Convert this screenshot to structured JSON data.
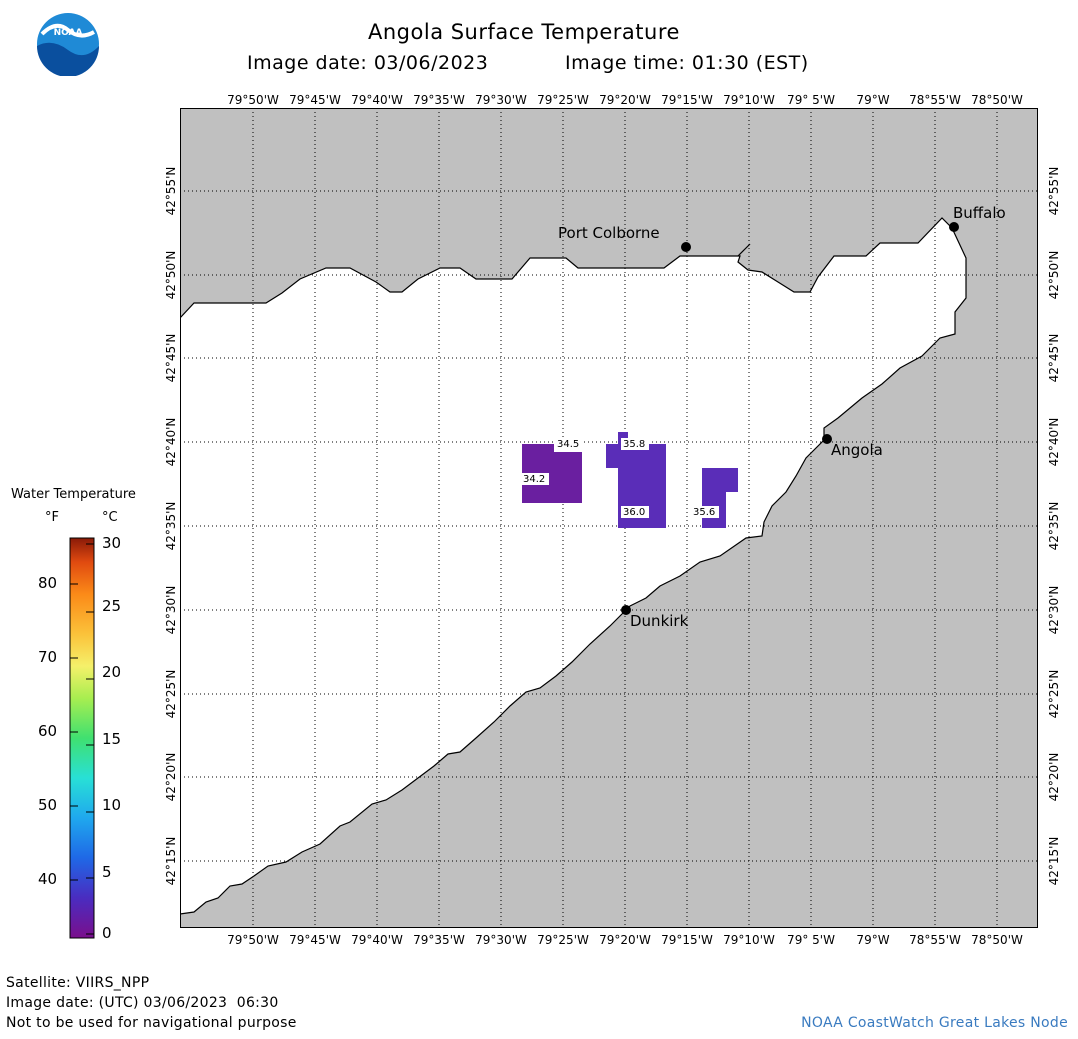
{
  "header": {
    "logo_text": "NOAA",
    "title": "Angola Surface Temperature",
    "image_date": "Image date: 03/06/2023",
    "image_time": "Image time: 01:30 (EST)"
  },
  "map": {
    "lon_labels": [
      "79°50'W",
      "79°45'W",
      "79°40'W",
      "79°35'W",
      "79°30'W",
      "79°25'W",
      "79°20'W",
      "79°15'W",
      "79°10'W",
      "79° 5'W",
      "79°W",
      "78°55'W",
      "78°50'W"
    ],
    "lat_labels": [
      "42°55'N",
      "42°50'N",
      "42°45'N",
      "42°40'N",
      "42°35'N",
      "42°30'N",
      "42°25'N",
      "42°20'N",
      "42°15'N"
    ],
    "cities": {
      "port_colborne": "Port Colborne",
      "buffalo": "Buffalo",
      "angola": "Angola",
      "dunkirk": "Dunkirk"
    },
    "temps": {
      "t345": "34.5",
      "t342": "34.2",
      "t358": "35.8",
      "t360": "36.0",
      "t356": "35.6"
    },
    "colors": {
      "land": "#c0c0c0",
      "water": "#ffffff",
      "patch_a": "#6a1fa0",
      "patch_b": "#5a2db8",
      "grid": "#000000"
    }
  },
  "legend": {
    "title": "Water Temperature",
    "unit_f": "°F",
    "unit_c": "°C",
    "f_ticks": [
      "80",
      "70",
      "60",
      "50",
      "40"
    ],
    "c_ticks": [
      "30",
      "25",
      "20",
      "15",
      "10",
      "5",
      "0"
    ]
  },
  "footer": {
    "satellite": "Satellite: VIIRS_NPP",
    "utc_date": "Image date: (UTC) 03/06/2023  06:30",
    "disclaimer": "Not to be used for navigational purpose",
    "credit": "NOAA CoastWatch Great Lakes Node"
  }
}
